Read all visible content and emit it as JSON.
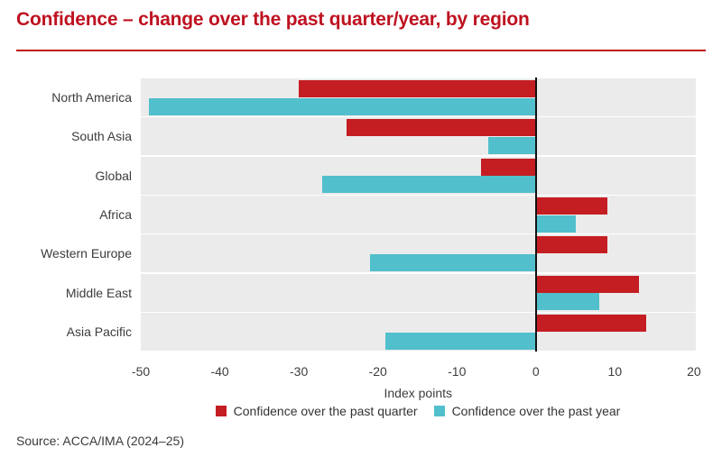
{
  "header": {
    "title": "Confidence – change over the past quarter/year, by region"
  },
  "colors": {
    "title_red": "#be1220",
    "rule_red": "#c01320",
    "bar_red": "#c41e22",
    "bar_cyan": "#52bfcc",
    "band_gray": "#ebebeb",
    "zero_line": "#111111",
    "axis_text": "#3d3d3d"
  },
  "chart_data": {
    "type": "bar",
    "orientation": "horizontal",
    "title": "Confidence – change over the past quarter/year, by region",
    "categories": [
      "North America",
      "South Asia",
      "Global",
      "Africa",
      "Western Europe",
      "Middle East",
      "Asia Pacific"
    ],
    "series": [
      {
        "name": "Confidence over the past quarter",
        "color": "#c41e22",
        "values": [
          -30,
          -24,
          -7,
          9,
          9,
          13,
          14
        ]
      },
      {
        "name": "Confidence over the past year",
        "color": "#52bfcc",
        "values": [
          -49,
          -6,
          -27,
          5,
          -21,
          8,
          -19
        ]
      }
    ],
    "xlabel": "Index points",
    "x_ticks": [
      -50,
      -40,
      -30,
      -20,
      -10,
      0,
      10,
      20
    ],
    "xlim": [
      -50.3,
      20.3
    ],
    "grid": false,
    "legend_position": "bottom"
  },
  "source": {
    "text": "Source: ACCA/IMA (2024–25)"
  }
}
